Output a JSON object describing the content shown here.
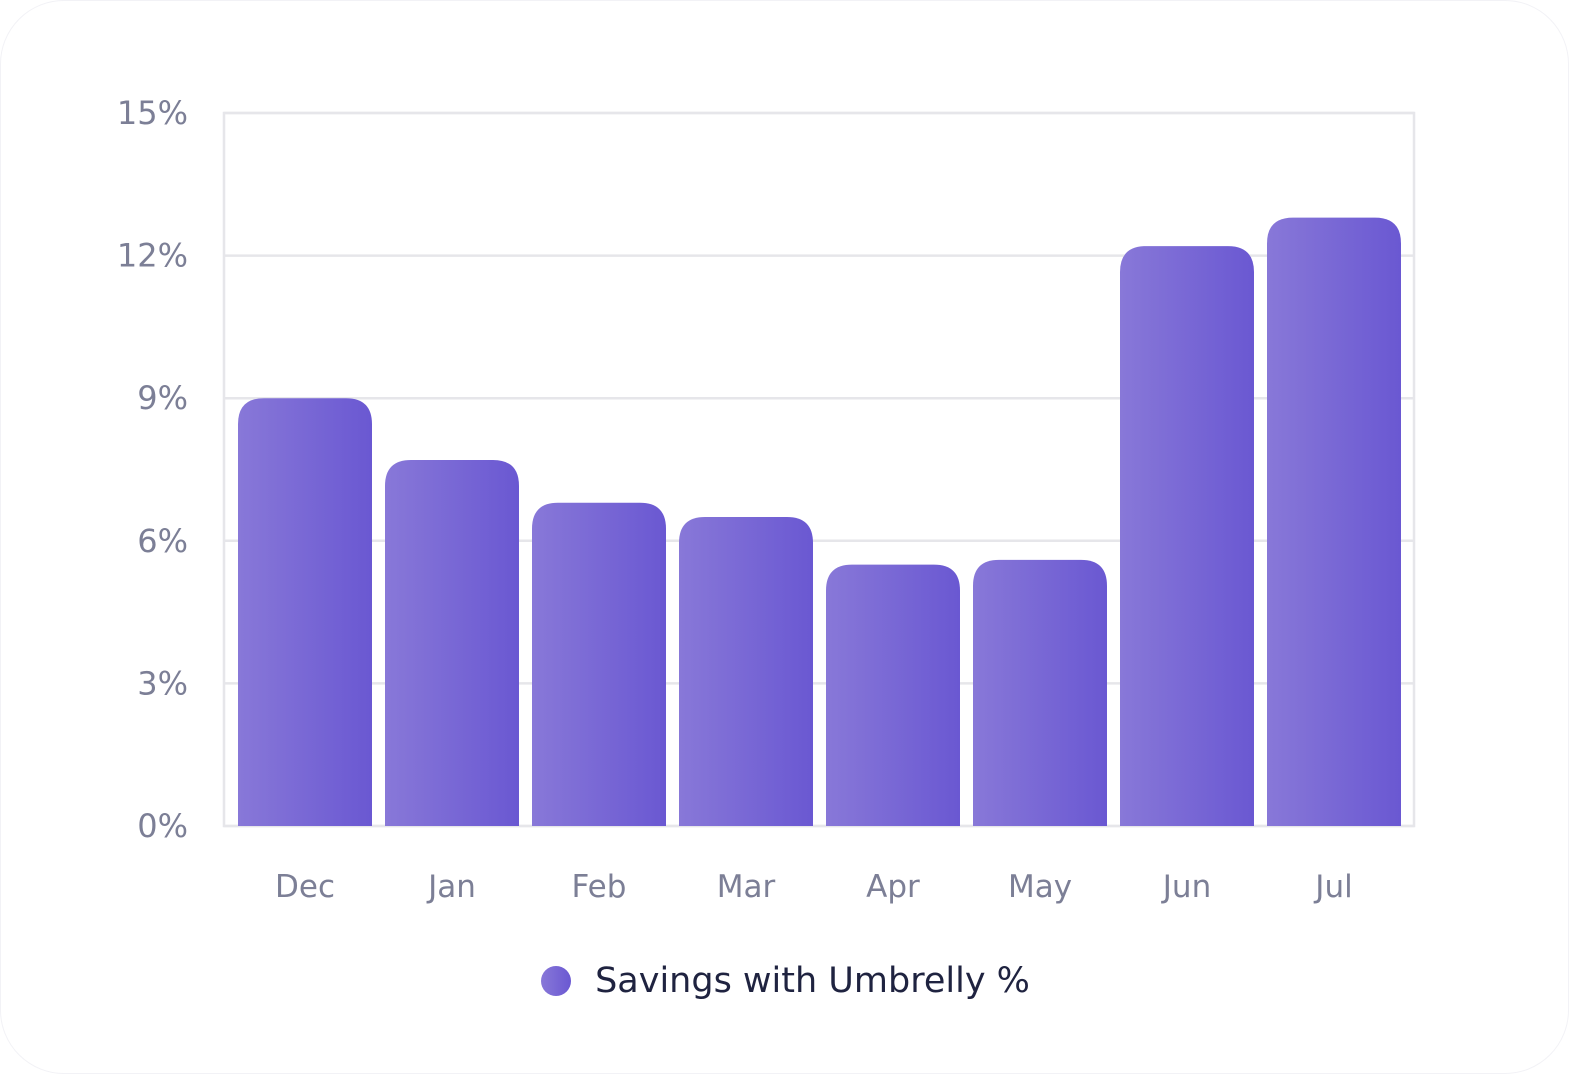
{
  "chart_data": {
    "type": "bar",
    "categories": [
      "Dec",
      "Jan",
      "Feb",
      "Mar",
      "Apr",
      "May",
      "Jun",
      "Jul"
    ],
    "series": [
      {
        "name": "Savings with Umbrelly %",
        "values": [
          9.0,
          7.7,
          6.8,
          6.5,
          5.5,
          5.6,
          12.2,
          12.8
        ]
      }
    ],
    "yticks": [
      "0%",
      "3%",
      "6%",
      "9%",
      "12%",
      "15%"
    ],
    "ytick_values": [
      0,
      3,
      6,
      9,
      12,
      15
    ],
    "ylim": [
      0,
      15
    ],
    "grid": true,
    "legend_position": "bottom-center",
    "colors": {
      "bar_start": "#8878d8",
      "bar_end": "#6a58d2",
      "grid": "#e6e6ea",
      "tick_text": "#7c7f96",
      "legend_text": "#1f2340"
    }
  }
}
